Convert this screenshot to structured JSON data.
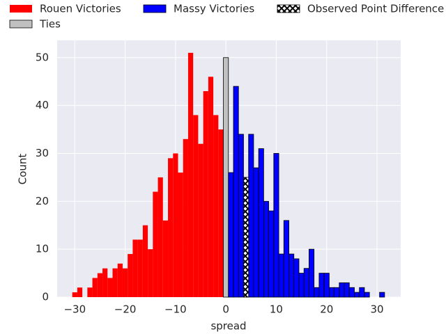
{
  "chart_data": {
    "type": "histogram",
    "xlabel": "spread",
    "ylabel": "Count",
    "xlim": [
      -33.5,
      34.7
    ],
    "ylim": [
      0,
      53.6
    ],
    "xticks": [
      {
        "value": -30,
        "label": "−30"
      },
      {
        "value": -20,
        "label": "−20"
      },
      {
        "value": -10,
        "label": "−10"
      },
      0,
      10,
      20,
      30
    ],
    "yticks": [
      0,
      10,
      20,
      30,
      40,
      50
    ],
    "grid": true,
    "series": [
      {
        "name": "Rouen Victories",
        "color": "#ff0000",
        "bins": [
          -30.5,
          -29.5,
          -28.5,
          -27.5,
          -26.5,
          -25.5,
          -24.5,
          -23.5,
          -22.5,
          -21.5,
          -20.5,
          -19.5,
          -18.5,
          -17.5,
          -16.5,
          -15.5,
          -14.5,
          -13.5,
          -12.5,
          -11.5,
          -10.5,
          -9.5,
          -8.5,
          -7.5,
          -6.5,
          -5.5,
          -4.5,
          -3.5,
          -2.5,
          -1.5,
          -0.5
        ],
        "counts": [
          1,
          2,
          0,
          2,
          4,
          5,
          6,
          4,
          6,
          7,
          6,
          9,
          12,
          12,
          15,
          10,
          22,
          25,
          16,
          29,
          30,
          26,
          33,
          51,
          38,
          32,
          43,
          46,
          38,
          35
        ]
      },
      {
        "name": "Ties",
        "color": "#c0c0c0",
        "edgecolor": "#000000",
        "bins": [
          -0.5,
          0.5
        ],
        "counts": [
          50
        ]
      },
      {
        "name": "Massy Victories",
        "color": "#0000ff",
        "edgecolor": "#000000",
        "bins": [
          0.5,
          1.5,
          2.5,
          3.5,
          4.5,
          5.5,
          6.5,
          7.5,
          8.5,
          9.5,
          10.5,
          11.5,
          12.5,
          13.5,
          14.5,
          15.5,
          16.5,
          17.5,
          18.5,
          19.5,
          20.5,
          21.5,
          22.5,
          23.5,
          24.5,
          25.5,
          26.5,
          27.5,
          28.5,
          29.5,
          30.5,
          31.5
        ],
        "counts": [
          26,
          44,
          34,
          25,
          34,
          27,
          31,
          20,
          18,
          30,
          9,
          16,
          9,
          8,
          5,
          6,
          10,
          2,
          5,
          5,
          2,
          2,
          3,
          3,
          2,
          1,
          2,
          1,
          0,
          0,
          1
        ]
      },
      {
        "name": "Observed Point Difference",
        "color": "#ffffff",
        "edgecolor": "#000000",
        "hatch": "x",
        "bins": [
          3.5,
          4.5
        ],
        "counts": [
          25
        ]
      }
    ]
  }
}
